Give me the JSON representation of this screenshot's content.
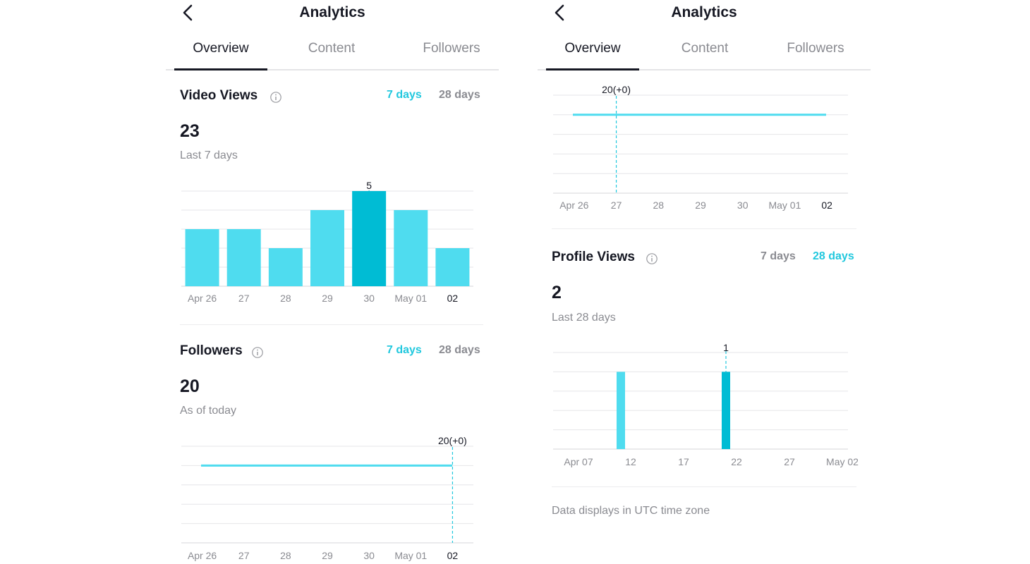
{
  "screen_left": {
    "header_title": "Analytics",
    "tabs": [
      "Overview",
      "Content",
      "Followers"
    ],
    "video_views": {
      "title": "Video Views",
      "range_7": "7 days",
      "range_28": "28 days",
      "value": "23",
      "caption": "Last 7 days",
      "tooltip": "5"
    },
    "followers": {
      "title": "Followers",
      "range_7": "7 days",
      "range_28": "28 days",
      "value": "20",
      "caption": "As of today",
      "tooltip": "20(+0)"
    }
  },
  "screen_right": {
    "header_title": "Analytics",
    "tabs": [
      "Overview",
      "Content",
      "Followers"
    ],
    "followers_tooltip": "20(+0)",
    "profile_views": {
      "title": "Profile Views",
      "range_7": "7 days",
      "range_28": "28 days",
      "value": "2",
      "caption": "Last 28 days",
      "tooltip": "1"
    },
    "footnote": "Data displays in UTC time zone"
  },
  "colors": {
    "accent": "#22c8de",
    "bar": "#4fdcef",
    "bar_highlight": "#00bcd4",
    "text": "#161823",
    "muted": "#8a8b91"
  },
  "chart_data": [
    {
      "type": "bar",
      "id": "video-views",
      "categories": [
        "Apr 26",
        "27",
        "28",
        "29",
        "30",
        "May 01",
        "02"
      ],
      "values": [
        3,
        3,
        2,
        4,
        5,
        4,
        2
      ],
      "highlight_index": 4,
      "ylim": [
        0,
        5
      ],
      "grid": true
    },
    {
      "type": "line",
      "id": "followers-left",
      "categories": [
        "Apr 26",
        "27",
        "28",
        "29",
        "30",
        "May 01",
        "02"
      ],
      "values": [
        20,
        20,
        20,
        20,
        20,
        20,
        20
      ],
      "highlight_index": 6,
      "grid": true
    },
    {
      "type": "line",
      "id": "followers-right",
      "categories": [
        "Apr 26",
        "27",
        "28",
        "29",
        "30",
        "May 01",
        "02"
      ],
      "values": [
        20,
        20,
        20,
        20,
        20,
        20,
        20
      ],
      "highlight_index": 1,
      "grid": true
    },
    {
      "type": "bar",
      "id": "profile-views",
      "x_tick_labels": [
        "Apr 07",
        "12",
        "17",
        "22",
        "27",
        "May 02"
      ],
      "dates": [
        "Apr 11",
        "Apr 21"
      ],
      "values": [
        1,
        1
      ],
      "highlight_index": 1,
      "ylim": [
        0,
        1
      ],
      "grid": true
    }
  ]
}
